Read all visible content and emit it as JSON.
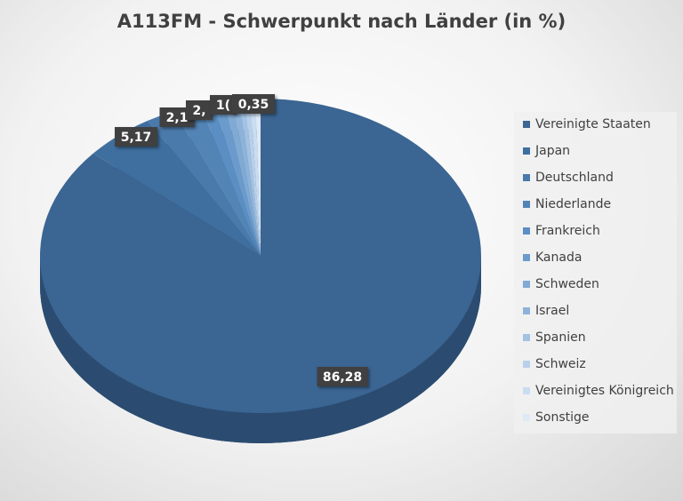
{
  "chart_data": {
    "type": "pie",
    "style": "3d",
    "title": "A113FM - Schwerpunkt nach Länder (in %)",
    "legend_position": "right",
    "start_angle": "top, clockwise",
    "slices": [
      {
        "label": "Vereinigte Staaten",
        "value": 86.28,
        "color": "#3b6592",
        "data_label": "86,28"
      },
      {
        "label": "Japan",
        "value": 5.17,
        "color": "#3f6f9f",
        "data_label": "5,17"
      },
      {
        "label": "Deutschland",
        "value": 2.14,
        "color": "#4a7aab",
        "data_label": "2,1"
      },
      {
        "label": "Niederlande",
        "value": 2.0,
        "color": "#5284b6",
        "data_label": "2,"
      },
      {
        "label": "Frankreich",
        "value": 1.0,
        "color": "#5b8ec2",
        "data_label": "1("
      },
      {
        "label": "Kanada",
        "value": 0.8,
        "color": "#6a9bcc",
        "data_label": ""
      },
      {
        "label": "Schweden",
        "value": 0.6,
        "color": "#80a9d3",
        "data_label": ""
      },
      {
        "label": "Israel",
        "value": 0.5,
        "color": "#8db3da",
        "data_label": ""
      },
      {
        "label": "Spanien",
        "value": 0.4,
        "color": "#a3c2e2",
        "data_label": ""
      },
      {
        "label": "Schweiz",
        "value": 0.38,
        "color": "#b8d0ea",
        "data_label": ""
      },
      {
        "label": "Vereinigtes Königreich",
        "value": 0.38,
        "color": "#cadcf0",
        "data_label": ""
      },
      {
        "label": "Sonstige",
        "value": 0.35,
        "color": "#dde9f6",
        "data_label": "0,35"
      }
    ]
  }
}
